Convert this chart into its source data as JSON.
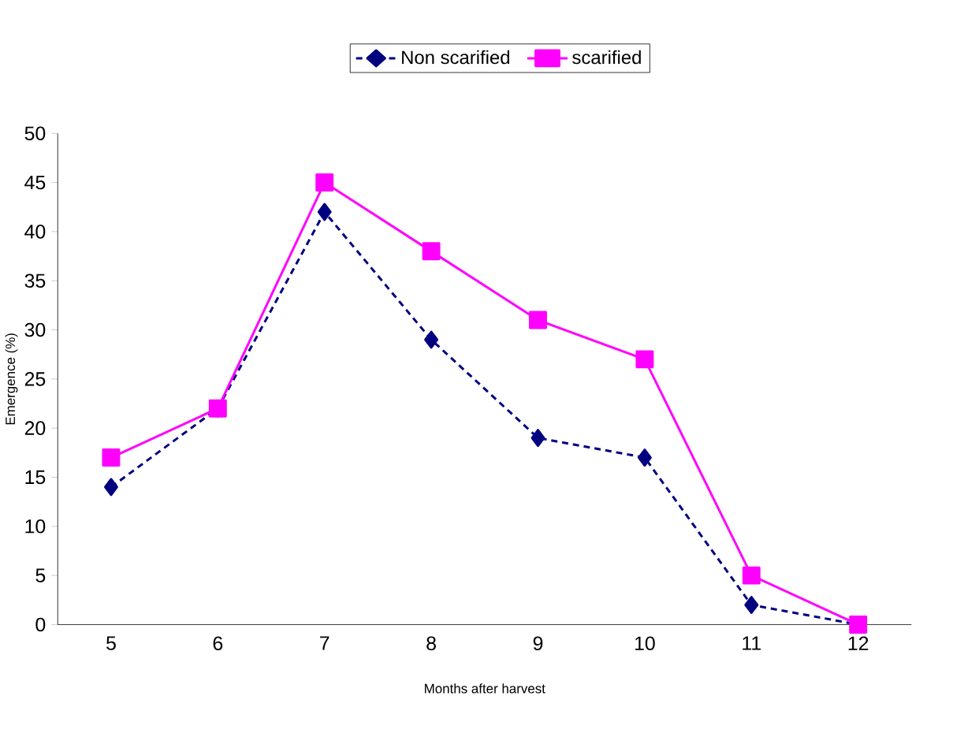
{
  "chart_data": {
    "type": "line",
    "xlabel": "Months after harvest",
    "ylabel": "Emergence (%)",
    "categories": [
      "5",
      "6",
      "7",
      "8",
      "9",
      "10",
      "11",
      "12"
    ],
    "series": [
      {
        "name": "Non scarified",
        "color": "#000080",
        "marker": "diamond",
        "line_style": "dashed",
        "values": [
          14,
          22,
          42,
          29,
          19,
          17,
          2,
          0
        ]
      },
      {
        "name": "scarified",
        "color": "#ff00ff",
        "marker": "square",
        "line_style": "solid",
        "values": [
          17,
          22,
          45,
          38,
          31,
          27,
          5,
          0
        ]
      }
    ],
    "ylim": [
      0,
      50
    ],
    "yticks": [
      0,
      5,
      10,
      15,
      20,
      25,
      30,
      35,
      40,
      45,
      50
    ],
    "legend": "top"
  }
}
